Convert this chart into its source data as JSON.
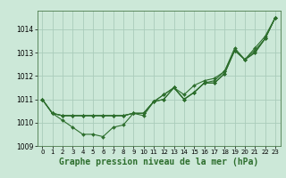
{
  "background_color": "#cce8d8",
  "grid_color": "#aaccbb",
  "line_color": "#2d6e2d",
  "title": "Graphe pression niveau de la mer (hPa)",
  "title_fontsize": 7,
  "xlim": [
    -0.5,
    23.5
  ],
  "ylim": [
    1009.0,
    1014.8
  ],
  "yticks": [
    1009,
    1010,
    1011,
    1012,
    1013,
    1014
  ],
  "xticks": [
    0,
    1,
    2,
    3,
    4,
    5,
    6,
    7,
    8,
    9,
    10,
    11,
    12,
    13,
    14,
    15,
    16,
    17,
    18,
    19,
    20,
    21,
    22,
    23
  ],
  "series": [
    [
      1011.0,
      1010.4,
      1010.1,
      1009.8,
      1009.5,
      1009.5,
      1009.4,
      1009.8,
      1009.9,
      1010.4,
      1010.3,
      1010.9,
      1011.0,
      1011.5,
      1011.0,
      1011.3,
      1011.7,
      1011.7,
      1012.1,
      1013.1,
      1012.7,
      1013.0,
      1013.6,
      1014.5
    ],
    [
      1011.0,
      1010.4,
      1010.3,
      1010.3,
      1010.3,
      1010.3,
      1010.3,
      1010.3,
      1010.3,
      1010.4,
      1010.4,
      1010.9,
      1011.0,
      1011.5,
      1011.0,
      1011.3,
      1011.7,
      1011.7,
      1012.1,
      1013.1,
      1012.7,
      1013.0,
      1013.6,
      1014.5
    ],
    [
      1011.0,
      1010.4,
      1010.3,
      1010.3,
      1010.3,
      1010.3,
      1010.3,
      1010.3,
      1010.3,
      1010.4,
      1010.4,
      1010.9,
      1011.2,
      1011.5,
      1011.0,
      1011.3,
      1011.7,
      1011.8,
      1012.2,
      1013.1,
      1012.7,
      1013.1,
      1013.6,
      1014.5
    ],
    [
      1011.0,
      1010.4,
      1010.3,
      1010.3,
      1010.3,
      1010.3,
      1010.3,
      1010.3,
      1010.3,
      1010.4,
      1010.4,
      1010.9,
      1011.2,
      1011.5,
      1011.2,
      1011.6,
      1011.8,
      1011.9,
      1012.2,
      1013.2,
      1012.7,
      1013.2,
      1013.7,
      1014.5
    ]
  ],
  "marker": "D",
  "marker_size": 2.0,
  "linewidth": 0.8
}
